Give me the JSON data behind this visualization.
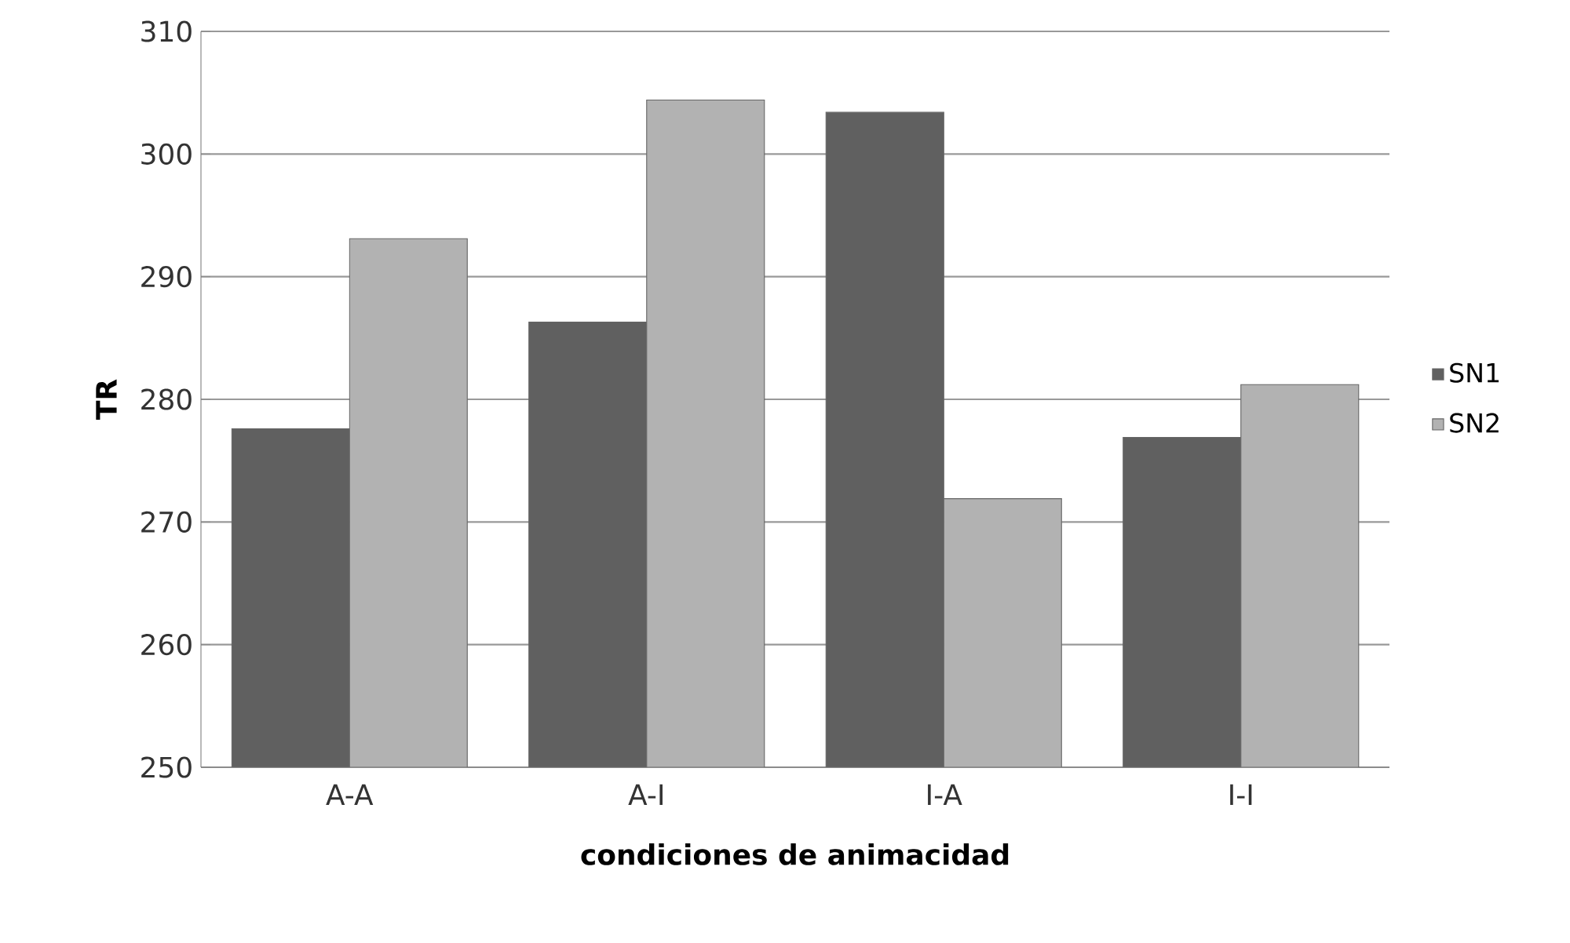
{
  "chart_data": {
    "type": "bar",
    "xlabel": "condiciones de animacidad",
    "ylabel": "TR",
    "categories": [
      "A-A",
      "A-I",
      "I-A",
      "I-I"
    ],
    "series": [
      {
        "name": "SN1",
        "color": "#606060",
        "values": [
          277.6,
          286.3,
          303.4,
          276.9
        ]
      },
      {
        "name": "SN2",
        "color": "#b2b2b2",
        "values": [
          293.1,
          304.4,
          271.9,
          281.2
        ]
      }
    ],
    "ylim": [
      250,
      310
    ],
    "yticks": [
      250,
      260,
      270,
      280,
      290,
      300,
      310
    ],
    "grid": "y",
    "legend": "right"
  }
}
